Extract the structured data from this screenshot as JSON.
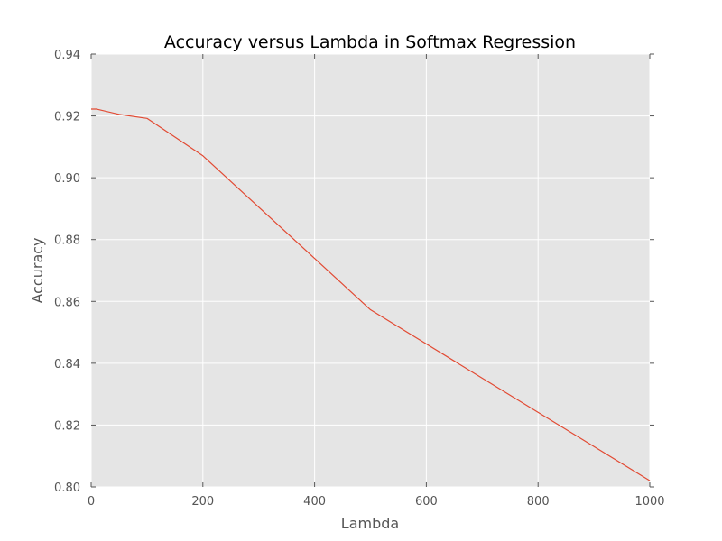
{
  "chart_data": {
    "type": "line",
    "title": "Accuracy versus Lambda in Softmax Regression",
    "xlabel": "Lambda",
    "ylabel": "Accuracy",
    "xlim": [
      0,
      1000
    ],
    "ylim": [
      0.8,
      0.94
    ],
    "x_ticks": [
      "0",
      "200",
      "400",
      "600",
      "800",
      "1000"
    ],
    "y_ticks": [
      "0.80",
      "0.82",
      "0.84",
      "0.86",
      "0.88",
      "0.90",
      "0.92",
      "0.94"
    ],
    "grid": true,
    "series": [
      {
        "color": "#e24a33",
        "x": [
          0,
          10,
          50,
          100,
          200,
          500,
          1000
        ],
        "y": [
          0.9222,
          0.9222,
          0.9205,
          0.9192,
          0.9071,
          0.8573,
          0.802
        ]
      }
    ]
  },
  "colors": {
    "plot_background": "#e5e5e5",
    "grid": "#ffffff",
    "line": "#e24a33",
    "tick_text": "#555555"
  }
}
